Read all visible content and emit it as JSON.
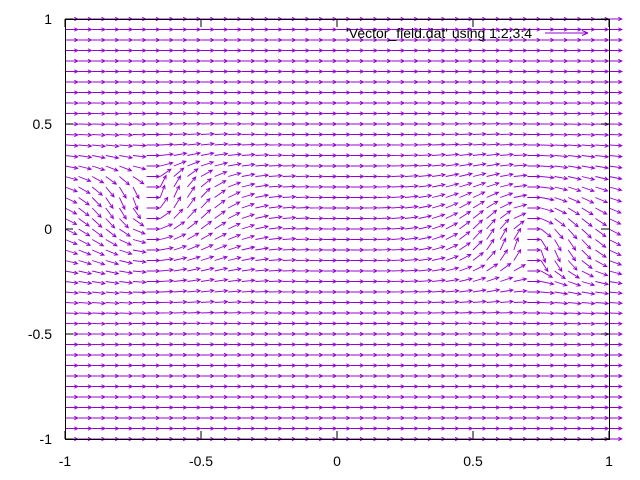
{
  "chart_data": {
    "type": "vector_field",
    "title": "",
    "xlabel": "",
    "ylabel": "",
    "xlim": [
      -1,
      1
    ],
    "ylim": [
      -1,
      1
    ],
    "x_ticks": [
      "-1",
      "-0.5",
      "0",
      "0.5",
      "1"
    ],
    "y_ticks": [
      "1",
      "0.5",
      "0",
      "-0.5",
      "-1"
    ],
    "grid": false,
    "legend_position": "top-right",
    "color": "#9400d3",
    "series": [
      {
        "name": "'Vector_field.dat' using 1:2:3:4"
      }
    ],
    "vortices": [
      {
        "x": -0.7,
        "y": 0.03,
        "rotation": "counterclockwise"
      },
      {
        "x": 0.7,
        "y": 0.03,
        "rotation": "clockwise"
      }
    ],
    "grid_resolution": {
      "nx": 41,
      "ny": 41
    }
  }
}
